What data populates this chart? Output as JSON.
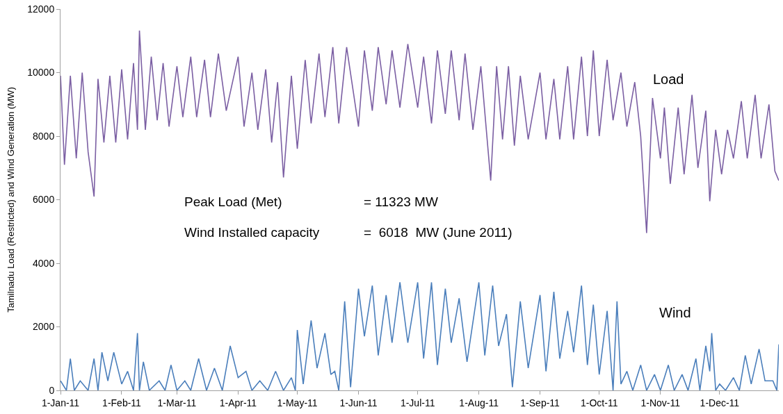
{
  "chart_data": {
    "type": "line",
    "ylabel": "Tamilnadu Load (Restricted) and Wind Generation (MW)",
    "xlim": [
      "2011-01-01",
      "2011-12-31"
    ],
    "xticks": [
      {
        "value": "2011-01-01",
        "label": "1-Jan-11"
      },
      {
        "value": "2011-02-01",
        "label": "1-Feb-11"
      },
      {
        "value": "2011-03-01",
        "label": "1-Mar-11"
      },
      {
        "value": "2011-04-01",
        "label": "1-Apr-11"
      },
      {
        "value": "2011-05-01",
        "label": "1-May-11"
      },
      {
        "value": "2011-06-01",
        "label": "1-Jun-11"
      },
      {
        "value": "2011-07-01",
        "label": "1-Jul-11"
      },
      {
        "value": "2011-08-01",
        "label": "1-Aug-11"
      },
      {
        "value": "2011-09-01",
        "label": "1-Sep-11"
      },
      {
        "value": "2011-10-01",
        "label": "1-Oct-11"
      },
      {
        "value": "2011-11-01",
        "label": "1-Nov-11"
      },
      {
        "value": "2011-12-01",
        "label": "1-Dec-11"
      }
    ],
    "ylim": [
      0,
      12000
    ],
    "yticks": [
      0,
      2000,
      4000,
      6000,
      8000,
      10000,
      12000
    ],
    "legend": false,
    "marker": "none",
    "line_style": "solid",
    "annotations": [
      "Peak Load (Met)",
      "= 11323 MW",
      "Wind Installed capacity",
      "=  6018  MW (June 2011)"
    ],
    "series": [
      {
        "name": "Load",
        "color": "#7b5fa3",
        "x": [
          "2011-01-01",
          "2011-01-03",
          "2011-01-06",
          "2011-01-09",
          "2011-01-12",
          "2011-01-15",
          "2011-01-18",
          "2011-01-20",
          "2011-01-23",
          "2011-01-26",
          "2011-01-29",
          "2011-02-01",
          "2011-02-04",
          "2011-02-07",
          "2011-02-09",
          "2011-02-10",
          "2011-02-13",
          "2011-02-16",
          "2011-02-19",
          "2011-02-22",
          "2011-02-25",
          "2011-03-01",
          "2011-03-04",
          "2011-03-08",
          "2011-03-11",
          "2011-03-15",
          "2011-03-18",
          "2011-03-22",
          "2011-03-26",
          "2011-04-01",
          "2011-04-04",
          "2011-04-08",
          "2011-04-11",
          "2011-04-15",
          "2011-04-18",
          "2011-04-21",
          "2011-04-24",
          "2011-04-28",
          "2011-05-01",
          "2011-05-05",
          "2011-05-08",
          "2011-05-12",
          "2011-05-15",
          "2011-05-19",
          "2011-05-22",
          "2011-05-26",
          "2011-06-01",
          "2011-06-04",
          "2011-06-08",
          "2011-06-11",
          "2011-06-15",
          "2011-06-18",
          "2011-06-22",
          "2011-06-26",
          "2011-07-01",
          "2011-07-04",
          "2011-07-08",
          "2011-07-11",
          "2011-07-15",
          "2011-07-18",
          "2011-07-22",
          "2011-07-25",
          "2011-07-29",
          "2011-08-02",
          "2011-08-07",
          "2011-08-10",
          "2011-08-13",
          "2011-08-16",
          "2011-08-19",
          "2011-08-22",
          "2011-08-26",
          "2011-09-01",
          "2011-09-04",
          "2011-09-08",
          "2011-09-11",
          "2011-09-15",
          "2011-09-18",
          "2011-09-22",
          "2011-09-25",
          "2011-09-28",
          "2011-10-01",
          "2011-10-05",
          "2011-10-08",
          "2011-10-12",
          "2011-10-15",
          "2011-10-19",
          "2011-10-22",
          "2011-10-25",
          "2011-10-28",
          "2011-11-01",
          "2011-11-03",
          "2011-11-06",
          "2011-11-10",
          "2011-11-13",
          "2011-11-17",
          "2011-11-20",
          "2011-11-24",
          "2011-11-26",
          "2011-11-29",
          "2011-12-02",
          "2011-12-05",
          "2011-12-08",
          "2011-12-12",
          "2011-12-15",
          "2011-12-19",
          "2011-12-22",
          "2011-12-26",
          "2011-12-29",
          "2011-12-31"
        ],
        "values": [
          9900,
          7100,
          9900,
          7300,
          10000,
          7500,
          6100,
          9800,
          7800,
          9900,
          7800,
          10100,
          7900,
          10300,
          8200,
          11323,
          8200,
          10500,
          8500,
          10300,
          8300,
          10200,
          8600,
          10500,
          8600,
          10400,
          8600,
          10600,
          8800,
          10500,
          8300,
          10000,
          8200,
          10100,
          7800,
          9700,
          6700,
          9900,
          7600,
          10400,
          8400,
          10600,
          8600,
          10800,
          8400,
          10800,
          8300,
          10700,
          8800,
          10800,
          9000,
          10700,
          8900,
          10900,
          8900,
          10500,
          8400,
          10700,
          8700,
          10700,
          8500,
          10600,
          8200,
          10200,
          6600,
          10200,
          7900,
          10200,
          7700,
          9900,
          7900,
          10000,
          7900,
          9800,
          7900,
          10200,
          7900,
          10500,
          8000,
          10700,
          8000,
          10400,
          8500,
          10000,
          8300,
          9700,
          8000,
          4950,
          9200,
          7300,
          8900,
          6500,
          8900,
          6800,
          9300,
          7000,
          8800,
          5950,
          8200,
          6800,
          8200,
          7300,
          9100,
          7300,
          9300,
          7300,
          9000,
          6900,
          6600
        ]
      },
      {
        "name": "Wind",
        "color": "#4a7ebb",
        "x": [
          "2011-01-01",
          "2011-01-04",
          "2011-01-06",
          "2011-01-08",
          "2011-01-11",
          "2011-01-15",
          "2011-01-18",
          "2011-01-20",
          "2011-01-22",
          "2011-01-25",
          "2011-01-28",
          "2011-02-01",
          "2011-02-04",
          "2011-02-07",
          "2011-02-09",
          "2011-02-10",
          "2011-02-12",
          "2011-02-15",
          "2011-02-20",
          "2011-02-23",
          "2011-02-26",
          "2011-03-01",
          "2011-03-05",
          "2011-03-08",
          "2011-03-12",
          "2011-03-16",
          "2011-03-20",
          "2011-03-24",
          "2011-03-28",
          "2011-04-01",
          "2011-04-05",
          "2011-04-08",
          "2011-04-12",
          "2011-04-16",
          "2011-04-20",
          "2011-04-24",
          "2011-04-28",
          "2011-04-30",
          "2011-05-01",
          "2011-05-04",
          "2011-05-08",
          "2011-05-11",
          "2011-05-15",
          "2011-05-18",
          "2011-05-20",
          "2011-05-22",
          "2011-05-25",
          "2011-05-28",
          "2011-06-01",
          "2011-06-04",
          "2011-06-08",
          "2011-06-11",
          "2011-06-15",
          "2011-06-18",
          "2011-06-22",
          "2011-06-26",
          "2011-07-01",
          "2011-07-04",
          "2011-07-08",
          "2011-07-11",
          "2011-07-15",
          "2011-07-18",
          "2011-07-22",
          "2011-07-26",
          "2011-08-01",
          "2011-08-04",
          "2011-08-08",
          "2011-08-11",
          "2011-08-15",
          "2011-08-18",
          "2011-08-22",
          "2011-08-26",
          "2011-09-01",
          "2011-09-04",
          "2011-09-08",
          "2011-09-11",
          "2011-09-15",
          "2011-09-18",
          "2011-09-22",
          "2011-09-25",
          "2011-09-28",
          "2011-10-01",
          "2011-10-05",
          "2011-10-08",
          "2011-10-10",
          "2011-10-12",
          "2011-10-15",
          "2011-10-18",
          "2011-10-22",
          "2011-10-25",
          "2011-10-29",
          "2011-11-01",
          "2011-11-05",
          "2011-11-08",
          "2011-11-12",
          "2011-11-15",
          "2011-11-19",
          "2011-11-21",
          "2011-11-24",
          "2011-11-26",
          "2011-11-27",
          "2011-11-29",
          "2011-12-01",
          "2011-12-04",
          "2011-12-08",
          "2011-12-11",
          "2011-12-14",
          "2011-12-17",
          "2011-12-21",
          "2011-12-24",
          "2011-12-28",
          "2011-12-30",
          "2011-12-31"
        ],
        "values": [
          300,
          0,
          1000,
          0,
          300,
          0,
          1000,
          0,
          1200,
          300,
          1200,
          200,
          600,
          0,
          1800,
          0,
          900,
          0,
          300,
          0,
          800,
          0,
          300,
          0,
          1000,
          0,
          700,
          0,
          1400,
          400,
          600,
          0,
          300,
          0,
          600,
          0,
          400,
          0,
          1900,
          200,
          2200,
          700,
          1800,
          500,
          600,
          0,
          2800,
          100,
          3200,
          1700,
          3300,
          1100,
          3000,
          1500,
          3400,
          1500,
          3400,
          1000,
          3400,
          800,
          3200,
          1500,
          2900,
          900,
          3400,
          1100,
          3300,
          1400,
          2400,
          100,
          2800,
          700,
          3000,
          600,
          3100,
          1000,
          2500,
          1200,
          3300,
          800,
          2700,
          500,
          2500,
          0,
          2800,
          200,
          600,
          0,
          800,
          0,
          500,
          0,
          800,
          0,
          500,
          0,
          1000,
          0,
          1400,
          600,
          1800,
          0,
          200,
          0,
          400,
          0,
          1100,
          200,
          1300,
          300,
          300,
          0,
          1450
        ]
      }
    ]
  }
}
